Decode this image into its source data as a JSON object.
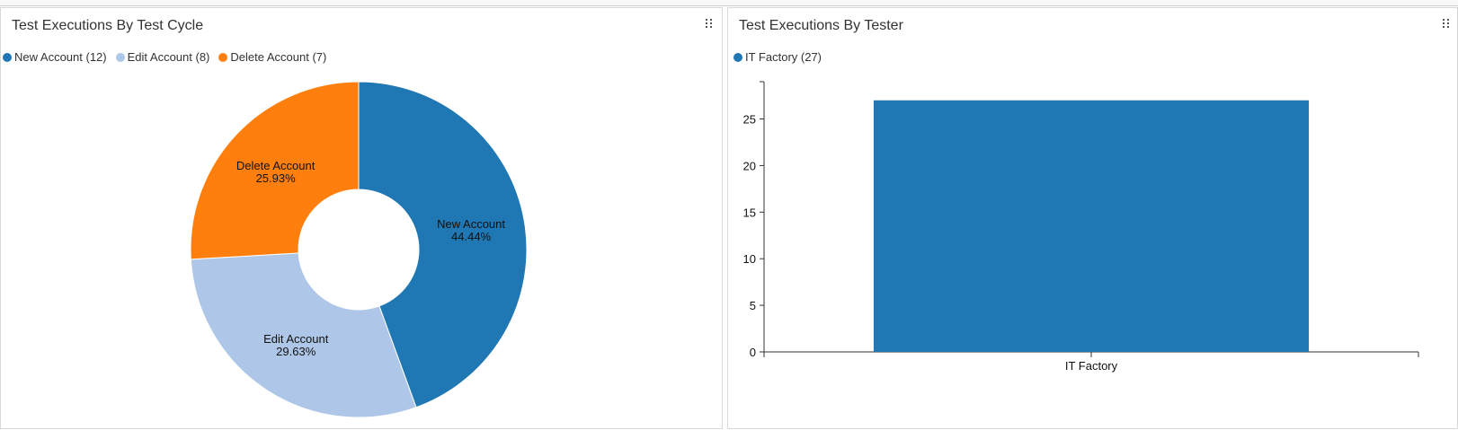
{
  "panels": {
    "cycle": {
      "title": "Test Executions By Test Cycle",
      "legend": [
        {
          "label": "New Account (12)",
          "color": "#1f77b4"
        },
        {
          "label": "Edit Account (8)",
          "color": "#aec7e8"
        },
        {
          "label": "Delete Account (7)",
          "color": "#ff7f0e"
        }
      ]
    },
    "tester": {
      "title": "Test Executions By Tester",
      "legend": [
        {
          "label": "IT Factory (27)",
          "color": "#1f77b4"
        }
      ]
    }
  },
  "chart_data": [
    {
      "type": "pie",
      "title": "Test Executions By Test Cycle",
      "donut": true,
      "legend_position": "top-left",
      "slices": [
        {
          "label": "New Account",
          "value": 12,
          "percent_label": "44.44%",
          "color": "#1f77b4"
        },
        {
          "label": "Edit Account",
          "value": 8,
          "percent_label": "29.63%",
          "color": "#aec7e8"
        },
        {
          "label": "Delete Account",
          "value": 7,
          "percent_label": "25.93%",
          "color": "#ff7f0e"
        }
      ]
    },
    {
      "type": "bar",
      "title": "Test Executions By Tester",
      "legend_position": "top-left",
      "categories": [
        "IT Factory"
      ],
      "series": [
        {
          "name": "IT Factory",
          "values": [
            27
          ],
          "color": "#1f77b4"
        }
      ],
      "ylim": [
        0,
        29
      ],
      "yticks": [
        0,
        5,
        10,
        15,
        20,
        25
      ],
      "grid": false
    }
  ]
}
